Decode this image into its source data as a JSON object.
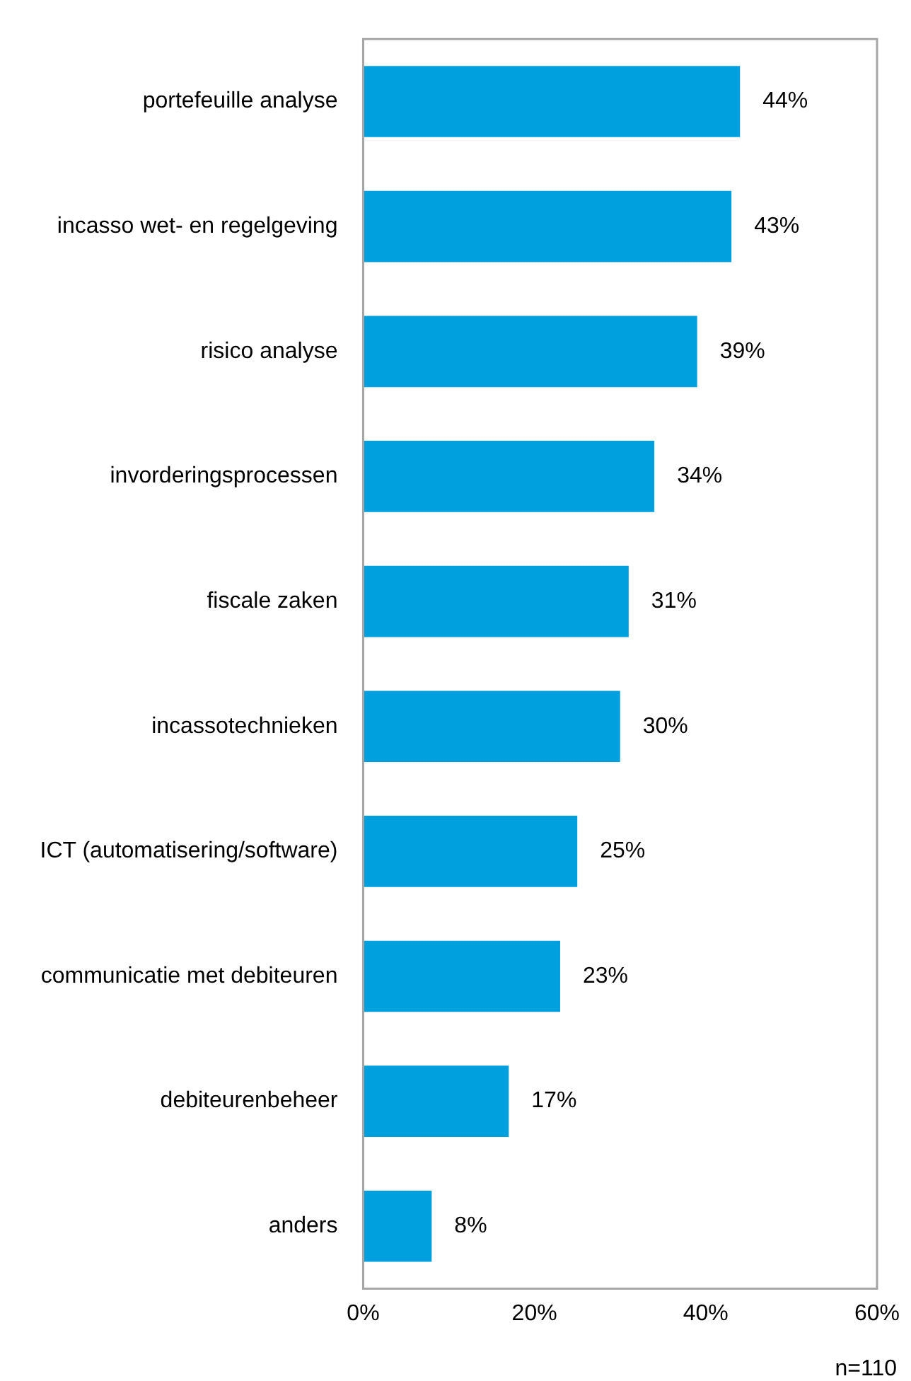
{
  "chart_data": {
    "type": "bar",
    "orientation": "horizontal",
    "categories": [
      "portefeuille analyse",
      "incasso wet- en regelgeving",
      "risico analyse",
      "invorderingsprocessen",
      "fiscale zaken",
      "incassotechnieken",
      "ICT (automatisering/software)",
      "communicatie met debiteuren",
      "debiteurenbeheer",
      "anders"
    ],
    "values": [
      44,
      43,
      39,
      34,
      31,
      30,
      25,
      23,
      17,
      8
    ],
    "value_labels": [
      "44%",
      "43%",
      "39%",
      "34%",
      "31%",
      "30%",
      "25%",
      "23%",
      "17%",
      "8%"
    ],
    "color": "#00a0df",
    "xlim": [
      0,
      60
    ],
    "xticks": [
      {
        "value": 0,
        "label": "0%"
      },
      {
        "value": 20,
        "label": "20%"
      },
      {
        "value": 40,
        "label": "40%"
      },
      {
        "value": 60,
        "label": "60%"
      }
    ],
    "grid": false,
    "annotations": [
      "n=110"
    ]
  }
}
